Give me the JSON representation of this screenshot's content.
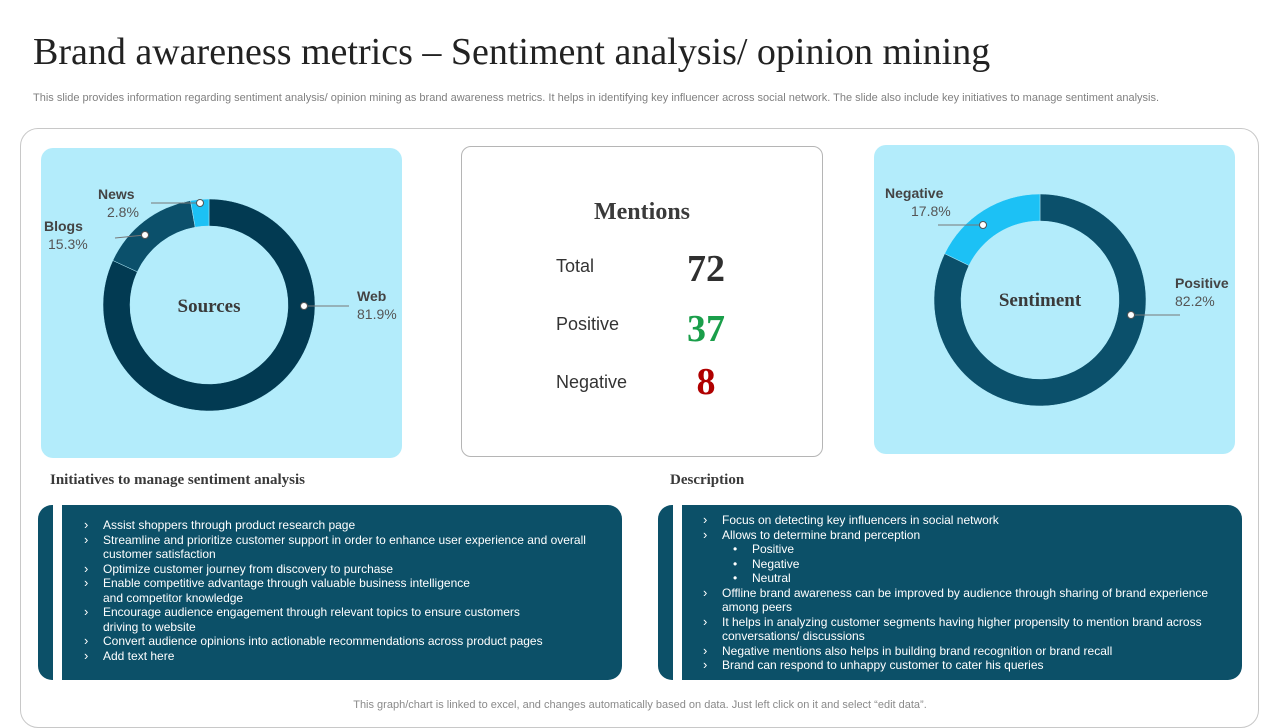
{
  "header": {
    "title": "Brand awareness metrics – Sentiment analysis/ opinion mining",
    "subtitle": "This slide provides information regarding sentiment analysis/ opinion mining as brand awareness metrics. It helps in identifying key influencer across social network. The slide also include key initiatives to manage sentiment analysis."
  },
  "colors": {
    "card_bg": "#b3ecfb",
    "dark_navy": "#023a52",
    "mid_teal": "#0b506b",
    "bright_cyan": "#1cc1f5",
    "panel_bg": "#0c5068",
    "positive_green": "#1a9e4a",
    "negative_red": "#b00000"
  },
  "chart_data": [
    {
      "type": "pie",
      "variant": "donut",
      "title": "Sources",
      "categories": [
        "Web",
        "Blogs",
        "News"
      ],
      "values": [
        81.9,
        15.3,
        2.8
      ],
      "labels": [
        "81.9%",
        "15.3%",
        "2.8%"
      ]
    },
    {
      "type": "pie",
      "variant": "donut",
      "title": "Sentiment",
      "categories": [
        "Positive",
        "Negative"
      ],
      "values": [
        82.2,
        17.8
      ],
      "labels": [
        "82.2%",
        "17.8%"
      ]
    }
  ],
  "mentions": {
    "title": "Mentions",
    "rows": [
      {
        "label": "Total",
        "value": "72"
      },
      {
        "label": "Positive",
        "value": "37"
      },
      {
        "label": "Negative",
        "value": "8"
      }
    ]
  },
  "initiatives": {
    "heading": "Initiatives to manage sentiment analysis",
    "items": [
      "Assist shoppers through product research page",
      "Streamline and prioritize customer support in order to enhance user experience and overall customer satisfaction",
      "Optimize customer journey from discovery to purchase",
      "Enable competitive advantage through valuable business intelligence and competitor knowledge",
      "Encourage audience engagement through relevant topics to ensure customers driving to website",
      "Convert audience opinions into actionable recommendations across product pages",
      "Add text here"
    ]
  },
  "description": {
    "heading": "Description",
    "items": [
      "Focus on detecting key influencers in social network",
      "Allows to determine brand perception",
      "Offline brand awareness can be improved by audience through sharing of brand experience among peers",
      "It helps in analyzing customer segments having higher propensity to mention brand across conversations/ discussions",
      "Negative mentions also helps in building brand recognition or brand recall",
      "Brand can respond to unhappy customer to cater his queries"
    ],
    "perception_subitems": [
      "Positive",
      "Negative",
      "Neutral"
    ]
  },
  "footer": {
    "note": "This graph/chart is linked to excel,  and changes automatically based on data. Just left click on it and select “edit data”."
  }
}
